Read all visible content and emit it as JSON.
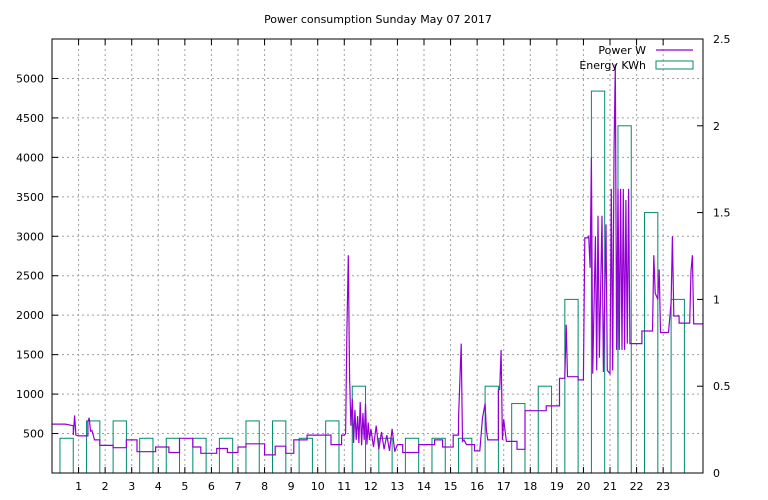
{
  "chart_data": {
    "type": "bar+line",
    "title": "Power consumption Sunday May 07 2017",
    "grid": true,
    "legend_position": "top-right",
    "xlim": [
      0,
      24.5
    ],
    "x_ticks": [
      "1",
      "2",
      "3",
      "4",
      "5",
      "6",
      "7",
      "8",
      "9",
      "10",
      "11",
      "12",
      "13",
      "14",
      "15",
      "16",
      "17",
      "18",
      "19",
      "20",
      "21",
      "22",
      "23"
    ],
    "y_left": {
      "ticks": [
        "500",
        "1000",
        "1500",
        "2000",
        "2500",
        "3000",
        "3500",
        "4000",
        "4500",
        "5000"
      ],
      "range": [
        0,
        5500
      ]
    },
    "y_right": {
      "ticks": [
        "0",
        "0.5",
        "1",
        "1.5",
        "2",
        "2.5"
      ],
      "range": [
        0,
        2.5
      ]
    },
    "series": [
      {
        "name": "Power W",
        "color": "#9400d3",
        "axis": "left",
        "points": [
          [
            0.0,
            620
          ],
          [
            0.5,
            620
          ],
          [
            0.8,
            600
          ],
          [
            0.8,
            480
          ],
          [
            0.85,
            730
          ],
          [
            0.9,
            480
          ],
          [
            1.0,
            470
          ],
          [
            1.35,
            470
          ],
          [
            1.35,
            650
          ],
          [
            1.4,
            700
          ],
          [
            1.45,
            530
          ],
          [
            1.5,
            540
          ],
          [
            1.6,
            420
          ],
          [
            1.8,
            420
          ],
          [
            1.8,
            350
          ],
          [
            2.3,
            350
          ],
          [
            2.3,
            320
          ],
          [
            2.8,
            320
          ],
          [
            2.8,
            420
          ],
          [
            3.2,
            420
          ],
          [
            3.2,
            270
          ],
          [
            3.9,
            270
          ],
          [
            3.9,
            330
          ],
          [
            4.4,
            330
          ],
          [
            4.4,
            260
          ],
          [
            4.8,
            260
          ],
          [
            4.8,
            440
          ],
          [
            5.3,
            440
          ],
          [
            5.3,
            330
          ],
          [
            5.6,
            330
          ],
          [
            5.6,
            250
          ],
          [
            6.2,
            250
          ],
          [
            6.2,
            310
          ],
          [
            6.6,
            310
          ],
          [
            6.6,
            260
          ],
          [
            7.0,
            260
          ],
          [
            7.0,
            330
          ],
          [
            7.3,
            330
          ],
          [
            7.3,
            370
          ],
          [
            8.0,
            370
          ],
          [
            8.0,
            230
          ],
          [
            8.4,
            230
          ],
          [
            8.4,
            340
          ],
          [
            8.8,
            340
          ],
          [
            8.8,
            250
          ],
          [
            9.1,
            250
          ],
          [
            9.1,
            420
          ],
          [
            9.6,
            420
          ],
          [
            9.6,
            480
          ],
          [
            10.5,
            480
          ],
          [
            10.5,
            360
          ],
          [
            10.9,
            360
          ],
          [
            10.9,
            480
          ],
          [
            11.0,
            480
          ],
          [
            11.05,
            500
          ],
          [
            11.1,
            1800
          ],
          [
            11.15,
            2760
          ],
          [
            11.2,
            1200
          ],
          [
            11.25,
            600
          ],
          [
            11.3,
            940
          ],
          [
            11.35,
            380
          ],
          [
            11.4,
            800
          ],
          [
            11.45,
            420
          ],
          [
            11.5,
            720
          ],
          [
            11.55,
            380
          ],
          [
            11.6,
            900
          ],
          [
            11.65,
            350
          ],
          [
            11.7,
            760
          ],
          [
            11.75,
            420
          ],
          [
            11.8,
            880
          ],
          [
            11.85,
            360
          ],
          [
            11.9,
            640
          ],
          [
            11.95,
            420
          ],
          [
            12.0,
            560
          ],
          [
            12.1,
            330
          ],
          [
            12.2,
            600
          ],
          [
            12.3,
            300
          ],
          [
            12.4,
            520
          ],
          [
            12.5,
            300
          ],
          [
            12.6,
            480
          ],
          [
            12.7,
            280
          ],
          [
            12.8,
            560
          ],
          [
            12.9,
            270
          ],
          [
            13.0,
            360
          ],
          [
            13.2,
            360
          ],
          [
            13.2,
            260
          ],
          [
            13.8,
            260
          ],
          [
            13.8,
            360
          ],
          [
            14.4,
            360
          ],
          [
            14.4,
            420
          ],
          [
            14.7,
            420
          ],
          [
            14.7,
            330
          ],
          [
            15.1,
            330
          ],
          [
            15.1,
            480
          ],
          [
            15.3,
            480
          ],
          [
            15.3,
            680
          ],
          [
            15.4,
            1640
          ],
          [
            15.45,
            400
          ],
          [
            15.5,
            420
          ],
          [
            15.6,
            360
          ],
          [
            15.9,
            360
          ],
          [
            15.9,
            280
          ],
          [
            16.1,
            280
          ],
          [
            16.2,
            700
          ],
          [
            16.3,
            880
          ],
          [
            16.35,
            540
          ],
          [
            16.4,
            420
          ],
          [
            16.8,
            420
          ],
          [
            16.8,
            1050
          ],
          [
            16.85,
            1060
          ],
          [
            16.9,
            1560
          ],
          [
            16.95,
            420
          ],
          [
            17.0,
            680
          ],
          [
            17.1,
            400
          ],
          [
            17.5,
            400
          ],
          [
            17.5,
            300
          ],
          [
            17.8,
            300
          ],
          [
            17.8,
            790
          ],
          [
            18.6,
            790
          ],
          [
            18.6,
            850
          ],
          [
            19.1,
            850
          ],
          [
            19.1,
            1200
          ],
          [
            19.3,
            1200
          ],
          [
            19.35,
            1880
          ],
          [
            19.4,
            1220
          ],
          [
            19.8,
            1220
          ],
          [
            19.8,
            1180
          ],
          [
            20.0,
            1180
          ],
          [
            20.05,
            2980
          ],
          [
            20.15,
            2980
          ],
          [
            20.2,
            3000
          ],
          [
            20.25,
            2600
          ],
          [
            20.3,
            4000
          ],
          [
            20.35,
            1260
          ],
          [
            20.45,
            3000
          ],
          [
            20.5,
            1300
          ],
          [
            20.55,
            3260
          ],
          [
            20.6,
            1460
          ],
          [
            20.7,
            3260
          ],
          [
            20.75,
            1280
          ],
          [
            20.85,
            3150
          ],
          [
            20.9,
            1300
          ],
          [
            21.0,
            1260
          ],
          [
            21.05,
            3600
          ],
          [
            21.1,
            1300
          ],
          [
            21.15,
            4060
          ],
          [
            21.2,
            5180
          ],
          [
            21.25,
            1560
          ],
          [
            21.3,
            3600
          ],
          [
            21.35,
            1560
          ],
          [
            21.4,
            3600
          ],
          [
            21.45,
            1560
          ],
          [
            21.5,
            3600
          ],
          [
            21.55,
            1560
          ],
          [
            21.6,
            3460
          ],
          [
            21.65,
            1640
          ],
          [
            21.7,
            3600
          ],
          [
            21.75,
            1640
          ],
          [
            22.2,
            1640
          ],
          [
            22.2,
            1800
          ],
          [
            22.6,
            1800
          ],
          [
            22.65,
            2760
          ],
          [
            22.7,
            2280
          ],
          [
            22.8,
            2200
          ],
          [
            22.85,
            2580
          ],
          [
            22.9,
            1780
          ],
          [
            23.2,
            1780
          ],
          [
            23.3,
            2160
          ],
          [
            23.35,
            3000
          ],
          [
            23.4,
            1990
          ],
          [
            23.6,
            1990
          ],
          [
            23.6,
            1900
          ],
          [
            24.0,
            1900
          ],
          [
            24.05,
            2560
          ],
          [
            24.1,
            2760
          ],
          [
            24.15,
            1890
          ],
          [
            24.5,
            1890
          ]
        ]
      },
      {
        "name": "Energy KWh",
        "color": "#008b6b",
        "axis": "right",
        "bars": [
          [
            0,
            0.2
          ],
          [
            1,
            0.3
          ],
          [
            2,
            0.3
          ],
          [
            3,
            0.2
          ],
          [
            4,
            0.2
          ],
          [
            5,
            0.2
          ],
          [
            6,
            0.2
          ],
          [
            7,
            0.3
          ],
          [
            8,
            0.3
          ],
          [
            9,
            0.2
          ],
          [
            10,
            0.3
          ],
          [
            11,
            0.5
          ],
          [
            12,
            0.2
          ],
          [
            13,
            0.2
          ],
          [
            14,
            0.2
          ],
          [
            15,
            0.2
          ],
          [
            16,
            0.5
          ],
          [
            17,
            0.4
          ],
          [
            18,
            0.5
          ],
          [
            19,
            1.0
          ],
          [
            20,
            2.2
          ],
          [
            21,
            2.0
          ],
          [
            22,
            1.5
          ],
          [
            23,
            1.0
          ]
        ]
      }
    ]
  }
}
